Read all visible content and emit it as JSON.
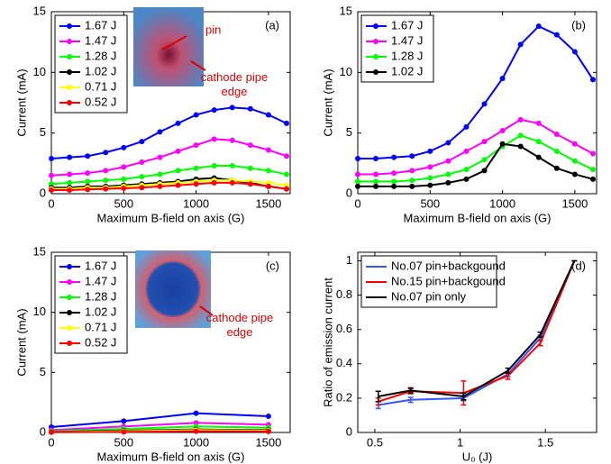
{
  "chart_data": [
    {
      "type": "line",
      "panel_label": "(a)",
      "xlabel": "Maximum B-field on axis (G)",
      "ylabel": "Current (mA)",
      "annotations": [
        "pin",
        "cathode pipe edge"
      ],
      "x": [
        0,
        125,
        250,
        375,
        500,
        625,
        750,
        875,
        1000,
        1125,
        1250,
        1375,
        1500,
        1625
      ],
      "xlim": [
        0,
        1650
      ],
      "xticks": [
        0,
        500,
        1000,
        1500
      ],
      "ylim": [
        0,
        15
      ],
      "yticks": [
        0,
        5,
        10,
        15
      ],
      "legend": "upper left",
      "series": [
        {
          "name": "1.67 J",
          "color": "#0000ff",
          "values": [
            2.9,
            3.0,
            3.1,
            3.4,
            3.8,
            4.3,
            5.1,
            5.8,
            6.5,
            6.9,
            7.1,
            7.0,
            6.5,
            5.8
          ]
        },
        {
          "name": "1.47 J",
          "color": "#ff00ff",
          "values": [
            1.5,
            1.6,
            1.7,
            1.9,
            2.2,
            2.6,
            3.0,
            3.5,
            4.0,
            4.5,
            4.4,
            4.0,
            3.6,
            3.1
          ]
        },
        {
          "name": "1.28 J",
          "color": "#00ff00",
          "values": [
            0.8,
            0.9,
            1.0,
            1.1,
            1.2,
            1.4,
            1.6,
            1.9,
            2.1,
            2.3,
            2.3,
            2.1,
            1.9,
            1.6
          ]
        },
        {
          "name": "1.02 J",
          "color": "#000000",
          "values": [
            0.5,
            0.5,
            0.6,
            0.6,
            0.7,
            0.8,
            0.9,
            1.0,
            1.2,
            1.3,
            1.1,
            0.9,
            0.6,
            0.4
          ]
        },
        {
          "name": "0.71 J",
          "color": "#ffff00",
          "values": [
            0.4,
            0.4,
            0.5,
            0.5,
            0.6,
            0.7,
            0.8,
            0.9,
            1.0,
            1.1,
            1.1,
            1.0,
            0.9,
            0.7
          ]
        },
        {
          "name": "0.52 J",
          "color": "#ff0000",
          "values": [
            0.3,
            0.3,
            0.35,
            0.4,
            0.45,
            0.5,
            0.6,
            0.7,
            0.8,
            0.9,
            0.9,
            0.8,
            0.6,
            0.4
          ]
        }
      ]
    },
    {
      "type": "line",
      "panel_label": "(b)",
      "xlabel": "Maximum B-field on axis (G)",
      "ylabel": "Current (mA)",
      "x": [
        0,
        125,
        250,
        375,
        500,
        625,
        750,
        875,
        1000,
        1125,
        1250,
        1375,
        1500,
        1625
      ],
      "xlim": [
        0,
        1650
      ],
      "xticks": [
        0,
        500,
        1000,
        1500
      ],
      "ylim": [
        0,
        15
      ],
      "yticks": [
        0,
        5,
        10,
        15
      ],
      "legend": "upper left",
      "series": [
        {
          "name": "1.67 J",
          "color": "#0000ff",
          "values": [
            2.9,
            2.9,
            3.0,
            3.1,
            3.5,
            4.2,
            5.5,
            7.4,
            9.5,
            12.3,
            13.8,
            13.1,
            11.7,
            9.4
          ]
        },
        {
          "name": "1.47 J",
          "color": "#ff00ff",
          "values": [
            1.6,
            1.6,
            1.7,
            1.9,
            2.2,
            2.7,
            3.5,
            4.3,
            5.2,
            6.1,
            5.8,
            4.9,
            4.1,
            3.3
          ]
        },
        {
          "name": "1.28 J",
          "color": "#00ff00",
          "values": [
            1.0,
            1.0,
            1.0,
            1.1,
            1.3,
            1.6,
            2.0,
            2.8,
            3.9,
            4.8,
            4.3,
            3.5,
            2.7,
            2.0
          ]
        },
        {
          "name": "1.02 J",
          "color": "#000000",
          "values": [
            0.6,
            0.6,
            0.6,
            0.6,
            0.7,
            0.9,
            1.2,
            1.9,
            4.1,
            3.9,
            3.0,
            2.1,
            1.6,
            1.2
          ]
        }
      ]
    },
    {
      "type": "line",
      "panel_label": "(c)",
      "xlabel": "Maximum B-field on axis (G)",
      "ylabel": "Current (mA)",
      "annotations": [
        "cathode pipe edge"
      ],
      "x": [
        0,
        500,
        1000,
        1500
      ],
      "xlim": [
        0,
        1650
      ],
      "xticks": [
        0,
        500,
        1000,
        1500
      ],
      "ylim": [
        0,
        15
      ],
      "yticks": [
        0,
        5,
        10,
        15
      ],
      "legend": "upper left",
      "series": [
        {
          "name": "1.67 J",
          "color": "#0000ff",
          "values": [
            0.45,
            0.95,
            1.6,
            1.35
          ]
        },
        {
          "name": "1.47 J",
          "color": "#ff00ff",
          "values": [
            0.2,
            0.5,
            0.8,
            0.65
          ]
        },
        {
          "name": "1.28 J",
          "color": "#00ff00",
          "values": [
            0.1,
            0.3,
            0.5,
            0.4
          ]
        },
        {
          "name": "1.02 J",
          "color": "#000000",
          "values": [
            0.05,
            0.15,
            0.25,
            0.2
          ]
        },
        {
          "name": "0.71 J",
          "color": "#ffff00",
          "values": [
            0.03,
            0.1,
            0.2,
            0.15
          ]
        },
        {
          "name": "0.52 J",
          "color": "#ff0000",
          "values": [
            0.02,
            0.05,
            0.1,
            0.08
          ]
        }
      ]
    },
    {
      "type": "errorline",
      "panel_label": "(d)",
      "xlabel": "U₀ (J)",
      "ylabel": "Ratio of emission current",
      "x": [
        0.52,
        0.71,
        1.02,
        1.28,
        1.47,
        1.67
      ],
      "xlim": [
        0.4,
        1.8
      ],
      "xticks": [
        0.5,
        1,
        1.5
      ],
      "ylim": [
        0,
        1.05
      ],
      "yticks": [
        0,
        0.2,
        0.4,
        0.6,
        0.8,
        1
      ],
      "legend": "upper left",
      "series": [
        {
          "name": "No.07 pin+backgound",
          "color": "#3355ff",
          "values": [
            0.16,
            0.19,
            0.2,
            0.34,
            0.55,
            1.0
          ],
          "errors": [
            0.02,
            0.015,
            0.015,
            0.015,
            0.015,
            0
          ]
        },
        {
          "name": "No.15 pin+backgound",
          "color": "#ff0000",
          "values": [
            0.18,
            0.24,
            0.23,
            0.33,
            0.52,
            1.0
          ],
          "errors": [
            0.02,
            0.015,
            0.07,
            0.02,
            0.015,
            0
          ]
        },
        {
          "name": "No.07 pin only",
          "color": "#000000",
          "values": [
            0.21,
            0.245,
            0.21,
            0.36,
            0.57,
            1.0
          ],
          "errors": [
            0.03,
            0.015,
            0.02,
            0.015,
            0.015,
            0
          ]
        }
      ]
    }
  ]
}
